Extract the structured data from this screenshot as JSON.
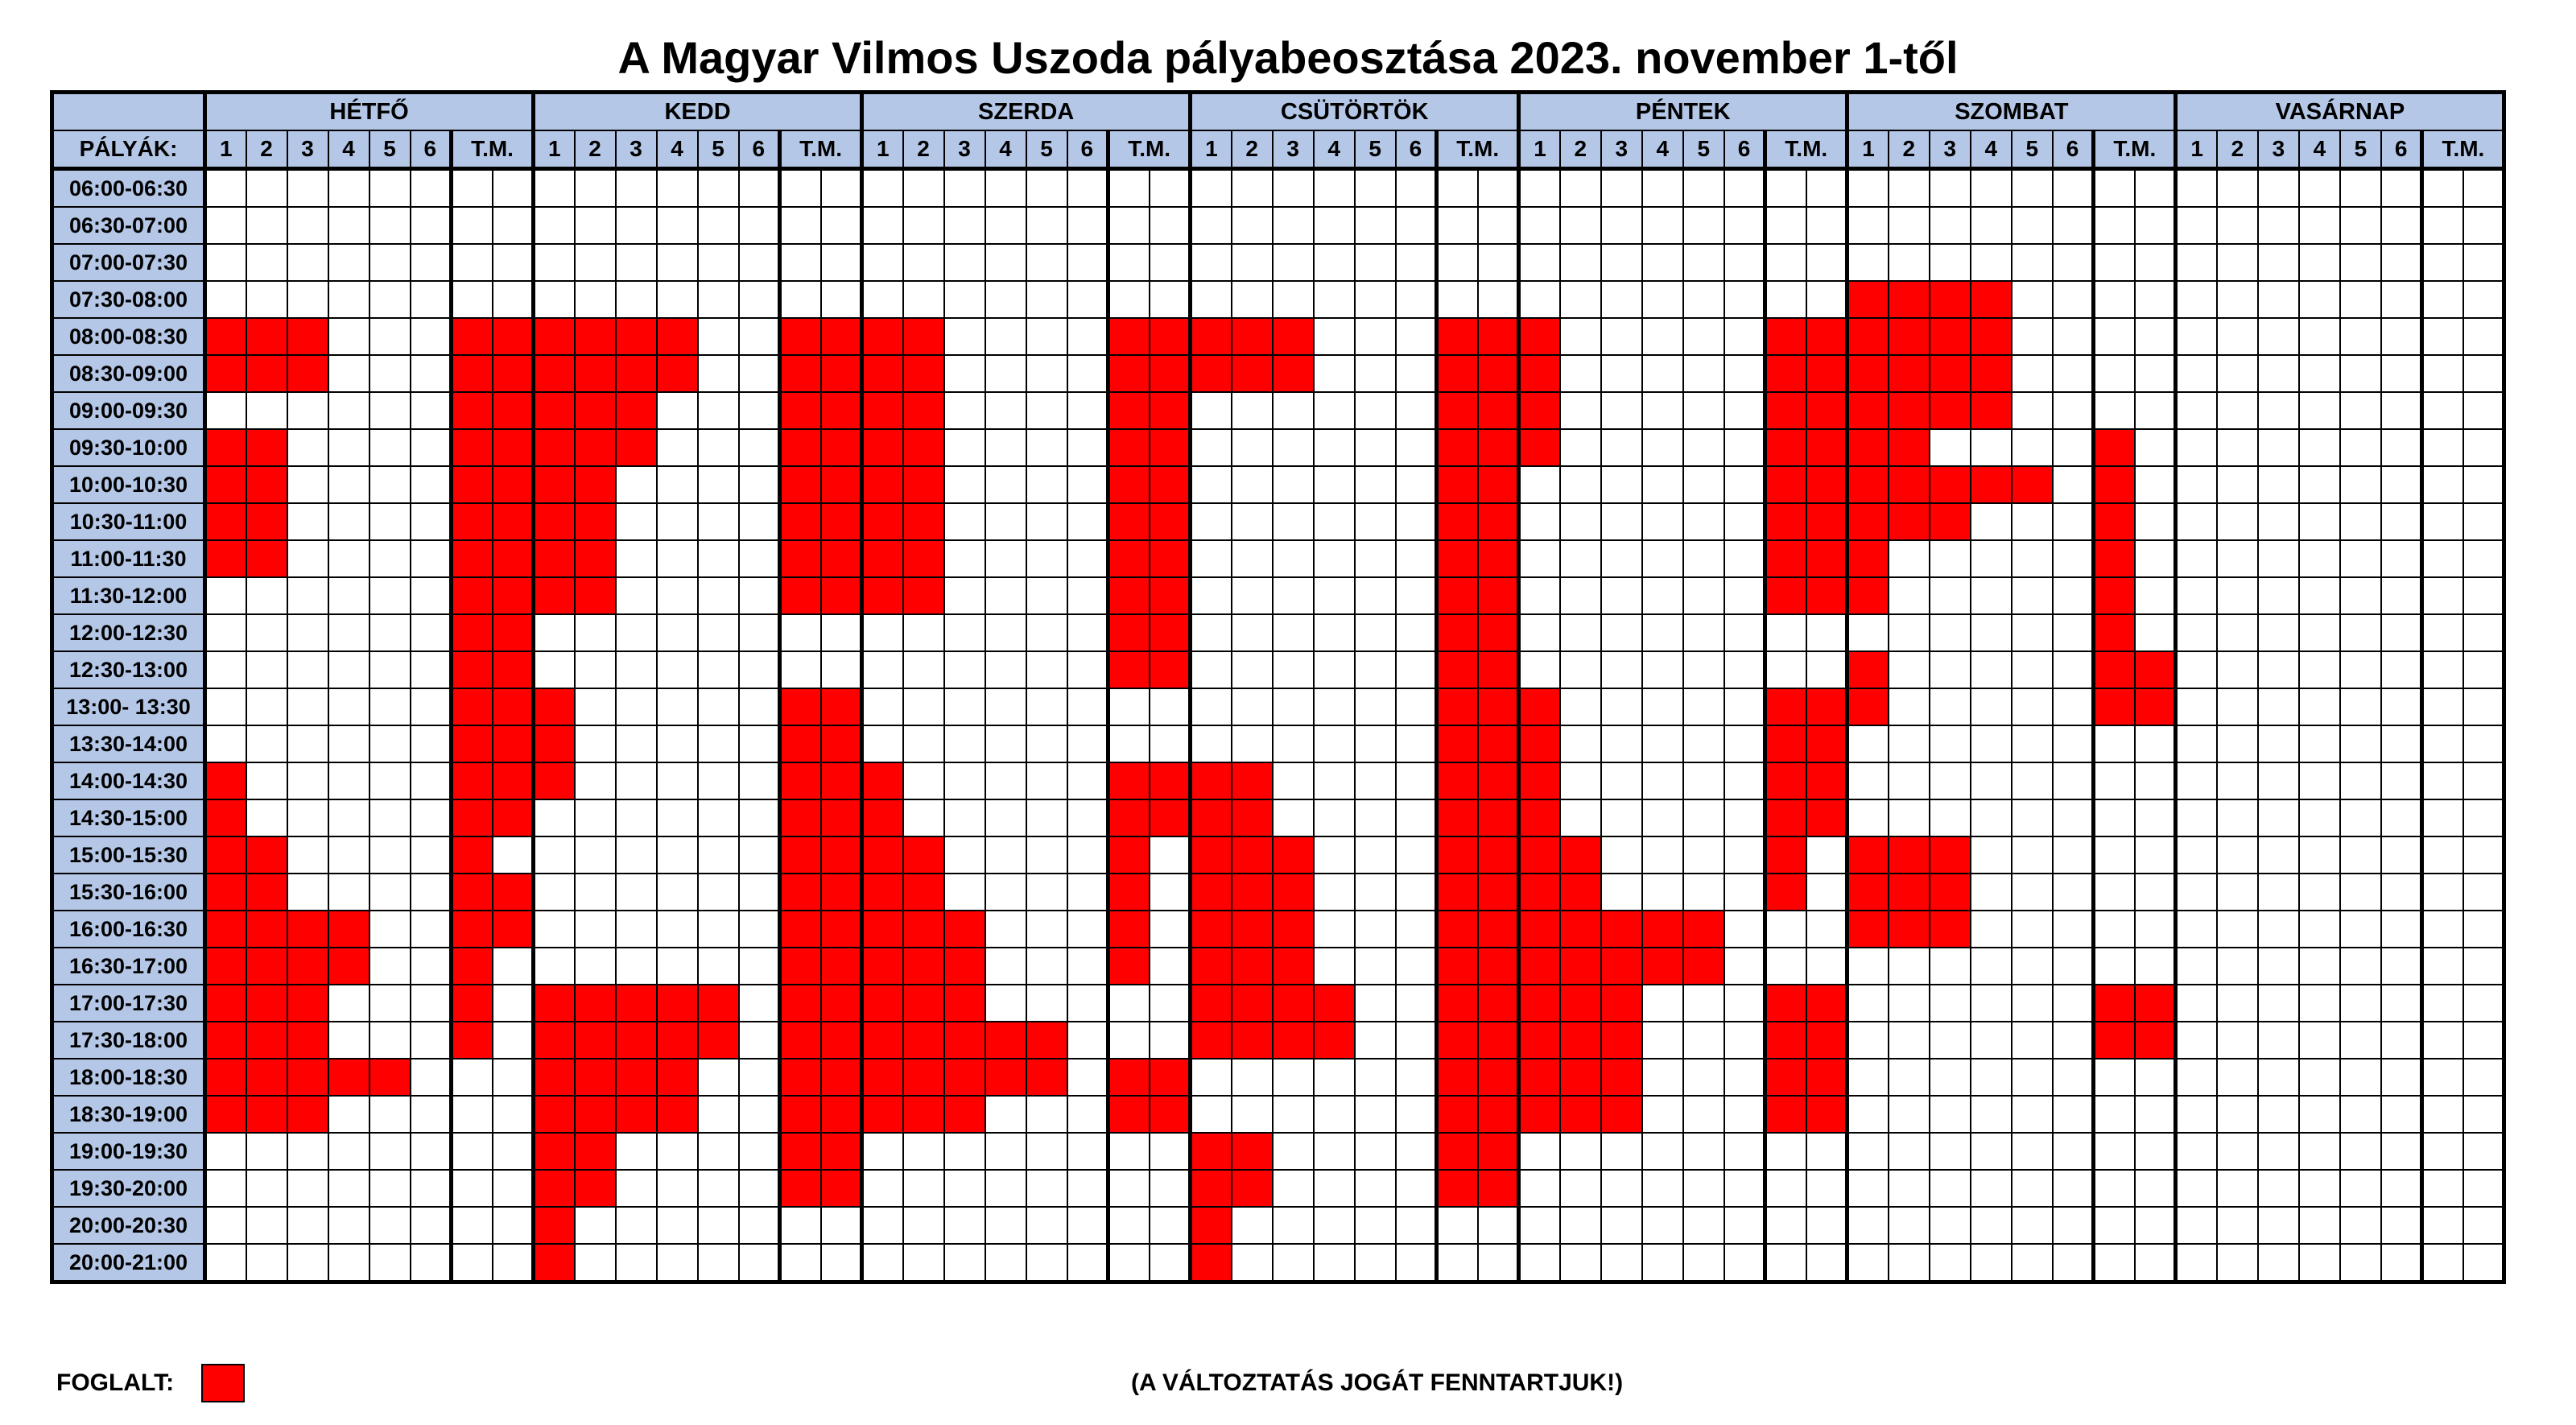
{
  "title": "A Magyar Vilmos Uszoda pályabeosztása 2023. november 1-től",
  "lanes_label": "PÁLYÁK:",
  "lane_headers": [
    "1",
    "2",
    "3",
    "4",
    "5",
    "6",
    "T.M.",
    ""
  ],
  "days": [
    "HÉTFŐ",
    "KEDD",
    "SZERDA",
    "CSÜTÖRTÖK",
    "PÉNTEK",
    "SZOMBAT",
    "VASÁRNAP"
  ],
  "times": [
    "06:00-06:30",
    "06:30-07:00",
    "07:00-07:30",
    "07:30-08:00",
    "08:00-08:30",
    "08:30-09:00",
    "09:00-09:30",
    "09:30-10:00",
    "10:00-10:30",
    "10:30-11:00",
    "11:00-11:30",
    "11:30-12:00",
    "12:00-12:30",
    "12:30-13:00",
    "13:00- 13:30",
    "13:30-14:00",
    "14:00-14:30",
    "14:30-15:00",
    "15:00-15:30",
    "15:30-16:00",
    "16:00-16:30",
    "16:30-17:00",
    "17:00-17:30",
    "17:30-18:00",
    "18:00-18:30",
    "18:30-19:00",
    "19:00-19:30",
    "19:30-20:00",
    "20:00-20:30",
    "20:00-21:00"
  ],
  "busy": [
    [
      0,
      0,
      0,
      0,
      0,
      0,
      0,
      0,
      0,
      0,
      0,
      0,
      0,
      0,
      0,
      0,
      0,
      0,
      0,
      0,
      0,
      0,
      0,
      0,
      0,
      0,
      0,
      0,
      0,
      0,
      0,
      0,
      0,
      0,
      0,
      0,
      0,
      0,
      0,
      0,
      0,
      0,
      0,
      0,
      0,
      0,
      0,
      0,
      0,
      0,
      0,
      0,
      0,
      0,
      0,
      0
    ],
    [
      0,
      0,
      0,
      0,
      0,
      0,
      0,
      0,
      0,
      0,
      0,
      0,
      0,
      0,
      0,
      0,
      0,
      0,
      0,
      0,
      0,
      0,
      0,
      0,
      0,
      0,
      0,
      0,
      0,
      0,
      0,
      0,
      0,
      0,
      0,
      0,
      0,
      0,
      0,
      0,
      0,
      0,
      0,
      0,
      0,
      0,
      0,
      0,
      0,
      0,
      0,
      0,
      0,
      0,
      0,
      0
    ],
    [
      0,
      0,
      0,
      0,
      0,
      0,
      0,
      0,
      0,
      0,
      0,
      0,
      0,
      0,
      0,
      0,
      0,
      0,
      0,
      0,
      0,
      0,
      0,
      0,
      0,
      0,
      0,
      0,
      0,
      0,
      0,
      0,
      0,
      0,
      0,
      0,
      0,
      0,
      0,
      0,
      0,
      0,
      0,
      0,
      0,
      0,
      0,
      0,
      0,
      0,
      0,
      0,
      0,
      0,
      0,
      0
    ],
    [
      0,
      0,
      0,
      0,
      0,
      0,
      0,
      0,
      0,
      0,
      0,
      0,
      0,
      0,
      0,
      0,
      0,
      0,
      0,
      0,
      0,
      0,
      0,
      0,
      0,
      0,
      0,
      0,
      0,
      0,
      0,
      0,
      0,
      0,
      0,
      0,
      0,
      0,
      0,
      0,
      1,
      1,
      1,
      1,
      0,
      0,
      0,
      0,
      0,
      0,
      0,
      0,
      0,
      0,
      0,
      0
    ],
    [
      1,
      1,
      1,
      0,
      0,
      0,
      1,
      1,
      1,
      1,
      1,
      1,
      0,
      0,
      1,
      1,
      1,
      1,
      0,
      0,
      0,
      0,
      1,
      1,
      1,
      1,
      1,
      0,
      0,
      0,
      1,
      1,
      1,
      0,
      0,
      0,
      0,
      0,
      1,
      1,
      1,
      1,
      1,
      1,
      0,
      0,
      0,
      0,
      0,
      0,
      0,
      0,
      0,
      0,
      0,
      0
    ],
    [
      1,
      1,
      1,
      0,
      0,
      0,
      1,
      1,
      1,
      1,
      1,
      1,
      0,
      0,
      1,
      1,
      1,
      1,
      0,
      0,
      0,
      0,
      1,
      1,
      1,
      1,
      1,
      0,
      0,
      0,
      1,
      1,
      1,
      0,
      0,
      0,
      0,
      0,
      1,
      1,
      1,
      1,
      1,
      1,
      0,
      0,
      0,
      0,
      0,
      0,
      0,
      0,
      0,
      0,
      0,
      0
    ],
    [
      0,
      0,
      0,
      0,
      0,
      0,
      1,
      1,
      1,
      1,
      1,
      0,
      0,
      0,
      1,
      1,
      1,
      1,
      0,
      0,
      0,
      0,
      1,
      1,
      0,
      0,
      0,
      0,
      0,
      0,
      1,
      1,
      1,
      0,
      0,
      0,
      0,
      0,
      1,
      1,
      1,
      1,
      1,
      1,
      0,
      0,
      0,
      0,
      0,
      0,
      0,
      0,
      0,
      0,
      0,
      0
    ],
    [
      1,
      1,
      0,
      0,
      0,
      0,
      1,
      1,
      1,
      1,
      1,
      0,
      0,
      0,
      1,
      1,
      1,
      1,
      0,
      0,
      0,
      0,
      1,
      1,
      0,
      0,
      0,
      0,
      0,
      0,
      1,
      1,
      1,
      0,
      0,
      0,
      0,
      0,
      1,
      1,
      1,
      1,
      0,
      0,
      0,
      0,
      1,
      0,
      0,
      0,
      0,
      0,
      0,
      0,
      0,
      0
    ],
    [
      1,
      1,
      0,
      0,
      0,
      0,
      1,
      1,
      1,
      1,
      0,
      0,
      0,
      0,
      1,
      1,
      1,
      1,
      0,
      0,
      0,
      0,
      1,
      1,
      0,
      0,
      0,
      0,
      0,
      0,
      1,
      1,
      0,
      0,
      0,
      0,
      0,
      0,
      1,
      1,
      1,
      1,
      1,
      1,
      1,
      0,
      1,
      0,
      0,
      0,
      0,
      0,
      0,
      0,
      0,
      0
    ],
    [
      1,
      1,
      0,
      0,
      0,
      0,
      1,
      1,
      1,
      1,
      0,
      0,
      0,
      0,
      1,
      1,
      1,
      1,
      0,
      0,
      0,
      0,
      1,
      1,
      0,
      0,
      0,
      0,
      0,
      0,
      1,
      1,
      0,
      0,
      0,
      0,
      0,
      0,
      1,
      1,
      1,
      1,
      1,
      0,
      0,
      0,
      1,
      0,
      0,
      0,
      0,
      0,
      0,
      0,
      0,
      0
    ],
    [
      1,
      1,
      0,
      0,
      0,
      0,
      1,
      1,
      1,
      1,
      0,
      0,
      0,
      0,
      1,
      1,
      1,
      1,
      0,
      0,
      0,
      0,
      1,
      1,
      0,
      0,
      0,
      0,
      0,
      0,
      1,
      1,
      0,
      0,
      0,
      0,
      0,
      0,
      1,
      1,
      1,
      0,
      0,
      0,
      0,
      0,
      1,
      0,
      0,
      0,
      0,
      0,
      0,
      0,
      0,
      0
    ],
    [
      0,
      0,
      0,
      0,
      0,
      0,
      1,
      1,
      1,
      1,
      0,
      0,
      0,
      0,
      1,
      1,
      1,
      1,
      0,
      0,
      0,
      0,
      1,
      1,
      0,
      0,
      0,
      0,
      0,
      0,
      1,
      1,
      0,
      0,
      0,
      0,
      0,
      0,
      1,
      1,
      1,
      0,
      0,
      0,
      0,
      0,
      1,
      0,
      0,
      0,
      0,
      0,
      0,
      0,
      0,
      0
    ],
    [
      0,
      0,
      0,
      0,
      0,
      0,
      1,
      1,
      0,
      0,
      0,
      0,
      0,
      0,
      0,
      0,
      0,
      0,
      0,
      0,
      0,
      0,
      1,
      1,
      0,
      0,
      0,
      0,
      0,
      0,
      1,
      1,
      0,
      0,
      0,
      0,
      0,
      0,
      0,
      0,
      0,
      0,
      0,
      0,
      0,
      0,
      1,
      0,
      0,
      0,
      0,
      0,
      0,
      0,
      0,
      0
    ],
    [
      0,
      0,
      0,
      0,
      0,
      0,
      1,
      1,
      0,
      0,
      0,
      0,
      0,
      0,
      0,
      0,
      0,
      0,
      0,
      0,
      0,
      0,
      1,
      1,
      0,
      0,
      0,
      0,
      0,
      0,
      1,
      1,
      0,
      0,
      0,
      0,
      0,
      0,
      0,
      0,
      1,
      0,
      0,
      0,
      0,
      0,
      1,
      1,
      0,
      0,
      0,
      0,
      0,
      0,
      0,
      0
    ],
    [
      0,
      0,
      0,
      0,
      0,
      0,
      1,
      1,
      1,
      0,
      0,
      0,
      0,
      0,
      1,
      1,
      0,
      0,
      0,
      0,
      0,
      0,
      0,
      0,
      0,
      0,
      0,
      0,
      0,
      0,
      1,
      1,
      1,
      0,
      0,
      0,
      0,
      0,
      1,
      1,
      1,
      0,
      0,
      0,
      0,
      0,
      1,
      1,
      0,
      0,
      0,
      0,
      0,
      0,
      0,
      0
    ],
    [
      0,
      0,
      0,
      0,
      0,
      0,
      1,
      1,
      1,
      0,
      0,
      0,
      0,
      0,
      1,
      1,
      0,
      0,
      0,
      0,
      0,
      0,
      0,
      0,
      0,
      0,
      0,
      0,
      0,
      0,
      1,
      1,
      1,
      0,
      0,
      0,
      0,
      0,
      1,
      1,
      0,
      0,
      0,
      0,
      0,
      0,
      0,
      0,
      0,
      0,
      0,
      0,
      0,
      0,
      0,
      0
    ],
    [
      1,
      0,
      0,
      0,
      0,
      0,
      1,
      1,
      1,
      0,
      0,
      0,
      0,
      0,
      1,
      1,
      1,
      0,
      0,
      0,
      0,
      0,
      1,
      1,
      1,
      1,
      0,
      0,
      0,
      0,
      1,
      1,
      1,
      0,
      0,
      0,
      0,
      0,
      1,
      1,
      0,
      0,
      0,
      0,
      0,
      0,
      0,
      0,
      0,
      0,
      0,
      0,
      0,
      0,
      0,
      0
    ],
    [
      1,
      0,
      0,
      0,
      0,
      0,
      1,
      1,
      0,
      0,
      0,
      0,
      0,
      0,
      1,
      1,
      1,
      0,
      0,
      0,
      0,
      0,
      1,
      1,
      1,
      1,
      0,
      0,
      0,
      0,
      1,
      1,
      1,
      0,
      0,
      0,
      0,
      0,
      1,
      1,
      0,
      0,
      0,
      0,
      0,
      0,
      0,
      0,
      0,
      0,
      0,
      0,
      0,
      0,
      0,
      0
    ],
    [
      1,
      1,
      0,
      0,
      0,
      0,
      1,
      0,
      0,
      0,
      0,
      0,
      0,
      0,
      1,
      1,
      1,
      1,
      0,
      0,
      0,
      0,
      1,
      0,
      1,
      1,
      1,
      0,
      0,
      0,
      1,
      1,
      1,
      1,
      0,
      0,
      0,
      0,
      1,
      0,
      1,
      1,
      1,
      0,
      0,
      0,
      0,
      0,
      0,
      0,
      0,
      0,
      0,
      0,
      0,
      0
    ],
    [
      1,
      1,
      0,
      0,
      0,
      0,
      1,
      1,
      0,
      0,
      0,
      0,
      0,
      0,
      1,
      1,
      1,
      1,
      0,
      0,
      0,
      0,
      1,
      0,
      1,
      1,
      1,
      0,
      0,
      0,
      1,
      1,
      1,
      1,
      0,
      0,
      0,
      0,
      1,
      0,
      1,
      1,
      1,
      0,
      0,
      0,
      0,
      0,
      0,
      0,
      0,
      0,
      0,
      0,
      0,
      0
    ],
    [
      1,
      1,
      1,
      1,
      0,
      0,
      1,
      1,
      0,
      0,
      0,
      0,
      0,
      0,
      1,
      1,
      1,
      1,
      1,
      0,
      0,
      0,
      1,
      0,
      1,
      1,
      1,
      0,
      0,
      0,
      1,
      1,
      1,
      1,
      1,
      1,
      1,
      0,
      0,
      0,
      1,
      1,
      1,
      0,
      0,
      0,
      0,
      0,
      0,
      0,
      0,
      0,
      0,
      0,
      0,
      0
    ],
    [
      1,
      1,
      1,
      1,
      0,
      0,
      1,
      0,
      0,
      0,
      0,
      0,
      0,
      0,
      1,
      1,
      1,
      1,
      1,
      0,
      0,
      0,
      1,
      0,
      1,
      1,
      1,
      0,
      0,
      0,
      1,
      1,
      1,
      1,
      1,
      1,
      1,
      0,
      0,
      0,
      0,
      0,
      0,
      0,
      0,
      0,
      0,
      0,
      0,
      0,
      0,
      0,
      0,
      0,
      0,
      0
    ],
    [
      1,
      1,
      1,
      0,
      0,
      0,
      1,
      0,
      1,
      1,
      1,
      1,
      1,
      0,
      1,
      1,
      1,
      1,
      1,
      0,
      0,
      0,
      0,
      0,
      1,
      1,
      1,
      1,
      0,
      0,
      1,
      1,
      1,
      1,
      1,
      0,
      0,
      0,
      1,
      1,
      0,
      0,
      0,
      0,
      0,
      0,
      1,
      1,
      0,
      0,
      0,
      0,
      0,
      0,
      0,
      0
    ],
    [
      1,
      1,
      1,
      0,
      0,
      0,
      1,
      0,
      1,
      1,
      1,
      1,
      1,
      0,
      1,
      1,
      1,
      1,
      1,
      1,
      1,
      0,
      0,
      0,
      1,
      1,
      1,
      1,
      0,
      0,
      1,
      1,
      1,
      1,
      1,
      0,
      0,
      0,
      1,
      1,
      0,
      0,
      0,
      0,
      0,
      0,
      1,
      1,
      0,
      0,
      0,
      0,
      0,
      0,
      0,
      0
    ],
    [
      1,
      1,
      1,
      1,
      1,
      0,
      0,
      0,
      1,
      1,
      1,
      1,
      0,
      0,
      1,
      1,
      1,
      1,
      1,
      1,
      1,
      0,
      1,
      1,
      0,
      0,
      0,
      0,
      0,
      0,
      1,
      1,
      1,
      1,
      1,
      0,
      0,
      0,
      1,
      1,
      0,
      0,
      0,
      0,
      0,
      0,
      0,
      0,
      0,
      0,
      0,
      0,
      0,
      0,
      0,
      0
    ],
    [
      1,
      1,
      1,
      0,
      0,
      0,
      0,
      0,
      1,
      1,
      1,
      1,
      0,
      0,
      1,
      1,
      1,
      1,
      1,
      0,
      0,
      0,
      1,
      1,
      0,
      0,
      0,
      0,
      0,
      0,
      1,
      1,
      1,
      1,
      1,
      0,
      0,
      0,
      1,
      1,
      0,
      0,
      0,
      0,
      0,
      0,
      0,
      0,
      0,
      0,
      0,
      0,
      0,
      0,
      0,
      0
    ],
    [
      0,
      0,
      0,
      0,
      0,
      0,
      0,
      0,
      1,
      1,
      0,
      0,
      0,
      0,
      1,
      1,
      0,
      0,
      0,
      0,
      0,
      0,
      0,
      0,
      1,
      1,
      0,
      0,
      0,
      0,
      1,
      1,
      0,
      0,
      0,
      0,
      0,
      0,
      0,
      0,
      0,
      0,
      0,
      0,
      0,
      0,
      0,
      0,
      0,
      0,
      0,
      0,
      0,
      0,
      0,
      0
    ],
    [
      0,
      0,
      0,
      0,
      0,
      0,
      0,
      0,
      1,
      1,
      0,
      0,
      0,
      0,
      1,
      1,
      0,
      0,
      0,
      0,
      0,
      0,
      0,
      0,
      1,
      1,
      0,
      0,
      0,
      0,
      1,
      1,
      0,
      0,
      0,
      0,
      0,
      0,
      0,
      0,
      0,
      0,
      0,
      0,
      0,
      0,
      0,
      0,
      0,
      0,
      0,
      0,
      0,
      0,
      0,
      0
    ],
    [
      0,
      0,
      0,
      0,
      0,
      0,
      0,
      0,
      1,
      0,
      0,
      0,
      0,
      0,
      0,
      0,
      0,
      0,
      0,
      0,
      0,
      0,
      0,
      0,
      1,
      0,
      0,
      0,
      0,
      0,
      0,
      0,
      0,
      0,
      0,
      0,
      0,
      0,
      0,
      0,
      0,
      0,
      0,
      0,
      0,
      0,
      0,
      0,
      0,
      0,
      0,
      0,
      0,
      0,
      0,
      0
    ],
    [
      0,
      0,
      0,
      0,
      0,
      0,
      0,
      0,
      1,
      0,
      0,
      0,
      0,
      0,
      0,
      0,
      0,
      0,
      0,
      0,
      0,
      0,
      0,
      0,
      1,
      0,
      0,
      0,
      0,
      0,
      0,
      0,
      0,
      0,
      0,
      0,
      0,
      0,
      0,
      0,
      0,
      0,
      0,
      0,
      0,
      0,
      0,
      0,
      0,
      0,
      0,
      0,
      0,
      0,
      0,
      0
    ]
  ],
  "legend": {
    "label": "FOGLALT:"
  },
  "note": "(A VÁLTOZTATÁS JOGÁT FENNTARTJUK!)",
  "colors": {
    "busy": "#ff0000",
    "header_bg": "#b4c7e7",
    "free": "#ffffff"
  }
}
